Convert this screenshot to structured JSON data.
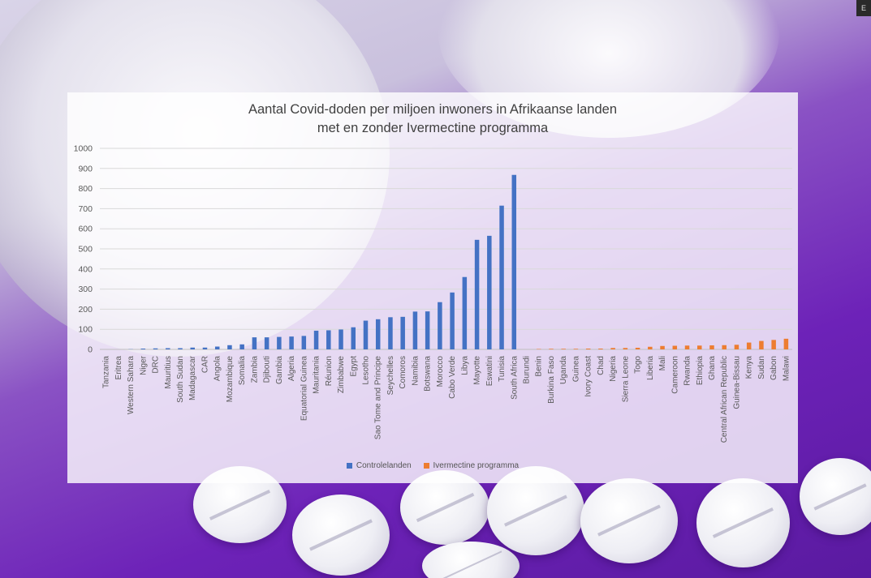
{
  "chart_data": {
    "type": "bar",
    "title_lines": [
      "Aantal Covid-doden per miljoen inwoners in Afrikaanse landen",
      "met en zonder Ivermectine programma"
    ],
    "ylim": [
      0,
      1000
    ],
    "yticks": [
      0,
      100,
      200,
      300,
      400,
      500,
      600,
      700,
      800,
      900,
      1000
    ],
    "grid": true,
    "legend_position": "bottom",
    "categories": [
      "Tanzania",
      "Eritrea",
      "Western Sahara",
      "Niger",
      "DRC",
      "Mauritius",
      "South Sudan",
      "Madagascar",
      "CAR",
      "Angola",
      "Mozambique",
      "Somalia",
      "Zambia",
      "Djibouti",
      "Gambia",
      "Algeria",
      "Equatorial Guinea",
      "Mauritania",
      "Réunion",
      "Zimbabwe",
      "Egypt",
      "Lesotho",
      "Sao Tome and Principe",
      "Seychelles",
      "Comoros",
      "Namibia",
      "Botswana",
      "Morocco",
      "Cabo Verde",
      "Libya",
      "Mayotte",
      "Eswatini",
      "Tunisia",
      "South Africa",
      "Burundi",
      "Benin",
      "Burkina Faso",
      "Uganda",
      "Guinea",
      "Ivory Coast",
      "Chad",
      "Nigeria",
      "Sierra Leone",
      "Togo",
      "Liberia",
      "Mali",
      "Cameroon",
      "Rwanda",
      "Ethiopia",
      "Ghana",
      "Central African Republic",
      "Guinea-Bissau",
      "Kenya",
      "Sudan",
      "Gabon",
      "Malawi"
    ],
    "series": [
      {
        "name": "Controlelanden",
        "color": "#4472c4",
        "values": [
          0,
          0,
          1,
          4,
          5,
          6,
          6,
          9,
          9,
          14,
          21,
          25,
          60,
          60,
          62,
          64,
          67,
          93,
          95,
          99,
          110,
          143,
          150,
          160,
          162,
          188,
          189,
          235,
          283,
          360,
          545,
          565,
          715,
          868,
          null,
          null,
          null,
          null,
          null,
          null,
          null,
          null,
          null,
          null,
          null,
          null,
          null,
          null,
          null,
          null,
          null,
          null,
          null,
          null,
          null,
          null
        ]
      },
      {
        "name": "Ivermectine programma",
        "color": "#ed7d31",
        "values": [
          null,
          null,
          null,
          null,
          null,
          null,
          null,
          null,
          null,
          null,
          null,
          null,
          null,
          null,
          null,
          null,
          null,
          null,
          null,
          null,
          null,
          null,
          null,
          null,
          null,
          null,
          null,
          null,
          null,
          null,
          null,
          null,
          null,
          null,
          0,
          2,
          3,
          3,
          3,
          4,
          4,
          7,
          7,
          8,
          13,
          17,
          18,
          19,
          19,
          20,
          21,
          23,
          34,
          42,
          47,
          53
        ]
      }
    ]
  }
}
